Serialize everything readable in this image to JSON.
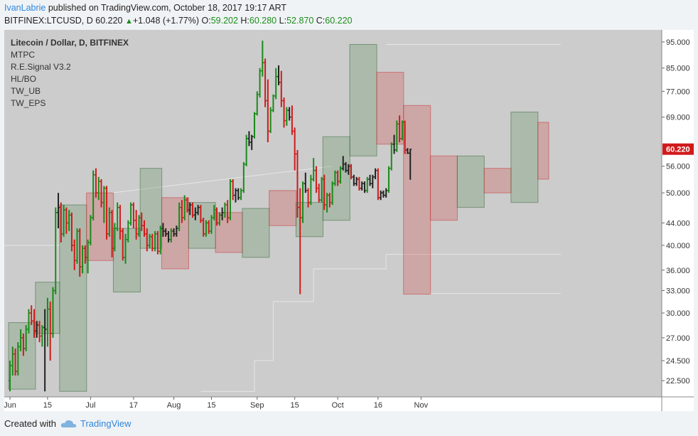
{
  "header": {
    "author": "IvanLabrie",
    "published_text": "published on TradingView.com, October 18, 2017 19:17 ART",
    "symbol": "BITFINEX:LTCUSD, D",
    "price": "60.220",
    "change": "+1.048 (+1.77%)",
    "o_label": "O:",
    "o_value": "59.202",
    "h_label": "H:",
    "h_value": "60.280",
    "l_label": "L:",
    "l_value": "52.870",
    "c_label": "C:",
    "c_value": "60.220"
  },
  "chart_data": {
    "type": "candlestick",
    "title": "Litecoin / Dollar, D, BITFINEX",
    "indicators": [
      "MTPC",
      "R.E.Signal V3.2",
      "HL/BO",
      "TW_UB",
      "TW_EPS"
    ],
    "y_ticks": [
      "95.000",
      "85.000",
      "77.000",
      "69.000",
      "56.000",
      "50.000",
      "44.000",
      "40.000",
      "36.000",
      "33.000",
      "30.000",
      "27.000",
      "24.500",
      "22.500"
    ],
    "x_ticks": [
      {
        "label": "Jun",
        "day": 0
      },
      {
        "label": "15",
        "day": 14
      },
      {
        "label": "Jul",
        "day": 30
      },
      {
        "label": "17",
        "day": 46
      },
      {
        "label": "Aug",
        "day": 61
      },
      {
        "label": "15",
        "day": 75
      },
      {
        "label": "Sep",
        "day": 92
      },
      {
        "label": "15",
        "day": 106
      },
      {
        "label": "Oct",
        "day": 122
      },
      {
        "label": "16",
        "day": 137
      },
      {
        "label": "Nov",
        "day": 153
      }
    ],
    "ylim": [
      21,
      100
    ],
    "scale": "log",
    "last_price": "60.220",
    "candles": [
      [
        22.5,
        24.5,
        21.5,
        24.0
      ],
      [
        24.0,
        26.0,
        23.0,
        25.2
      ],
      [
        25.2,
        25.8,
        23.0,
        23.4
      ],
      [
        23.4,
        26.5,
        23.0,
        26.0
      ],
      [
        26.0,
        28.0,
        25.5,
        27.0
      ],
      [
        27.0,
        27.5,
        25.0,
        25.8
      ],
      [
        25.8,
        28.5,
        25.5,
        28.0
      ],
      [
        28.0,
        30.5,
        27.5,
        30.0
      ],
      [
        30.0,
        31.0,
        28.5,
        29.0
      ],
      [
        29.0,
        30.5,
        27.0,
        27.8
      ],
      [
        27.8,
        29.0,
        27.0,
        28.5
      ],
      [
        28.5,
        29.0,
        26.5,
        27.2
      ],
      [
        27.2,
        28.5,
        26.0,
        28.2
      ],
      [
        28.2,
        30.5,
        21.5,
        28.0
      ],
      [
        28.0,
        32.0,
        26.0,
        30.5
      ],
      [
        30.5,
        31.5,
        24.5,
        27.5
      ],
      [
        27.5,
        33.5,
        27.0,
        33.0
      ],
      [
        33.0,
        47.0,
        32.5,
        46.0
      ],
      [
        46.0,
        50.0,
        43.0,
        47.0
      ],
      [
        47.0,
        48.0,
        40.5,
        42.0
      ],
      [
        42.0,
        47.5,
        41.5,
        46.5
      ],
      [
        46.5,
        47.0,
        42.0,
        44.0
      ],
      [
        44.0,
        46.5,
        42.5,
        45.5
      ],
      [
        45.5,
        46.0,
        39.0,
        40.0
      ],
      [
        40.0,
        41.0,
        36.0,
        37.5
      ],
      [
        37.5,
        43.0,
        37.0,
        42.5
      ],
      [
        42.5,
        43.0,
        35.0,
        36.5
      ],
      [
        36.5,
        40.0,
        35.5,
        39.5
      ],
      [
        39.5,
        40.0,
        37.0,
        38.0
      ],
      [
        38.0,
        41.0,
        35.5,
        40.5
      ],
      [
        40.5,
        45.5,
        40.0,
        45.0
      ],
      [
        45.0,
        55.0,
        44.5,
        54.0
      ],
      [
        54.0,
        55.5,
        49.0,
        50.0
      ],
      [
        50.0,
        53.5,
        48.5,
        52.5
      ],
      [
        52.5,
        53.0,
        47.0,
        48.0
      ],
      [
        48.0,
        51.5,
        44.0,
        51.0
      ],
      [
        51.0,
        51.5,
        41.0,
        42.0
      ],
      [
        42.0,
        47.0,
        41.5,
        46.0
      ],
      [
        46.0,
        46.5,
        38.0,
        39.5
      ],
      [
        39.5,
        44.0,
        39.0,
        43.0
      ],
      [
        43.0,
        48.0,
        42.5,
        47.0
      ],
      [
        47.0,
        47.5,
        41.0,
        42.5
      ],
      [
        42.5,
        43.0,
        37.5,
        38.0
      ],
      [
        38.0,
        42.0,
        37.0,
        41.0
      ],
      [
        41.0,
        44.5,
        40.5,
        44.0
      ],
      [
        44.0,
        48.0,
        43.5,
        47.5
      ],
      [
        47.5,
        48.0,
        43.0,
        44.5
      ],
      [
        44.5,
        46.5,
        41.0,
        42.0
      ],
      [
        42.0,
        45.5,
        41.5,
        45.0
      ],
      [
        45.0,
        46.0,
        42.5,
        43.5
      ],
      [
        43.5,
        44.5,
        41.5,
        42.0
      ],
      [
        42.0,
        43.0,
        39.0,
        40.0
      ],
      [
        40.0,
        42.0,
        39.5,
        41.5
      ],
      [
        41.5,
        42.0,
        39.0,
        39.5
      ],
      [
        39.5,
        42.5,
        39.0,
        42.0
      ],
      [
        42.0,
        42.5,
        38.5,
        39.0
      ],
      [
        39.0,
        43.5,
        38.5,
        43.0
      ],
      [
        43.0,
        44.0,
        41.5,
        42.5
      ],
      [
        42.5,
        43.0,
        41.5,
        42.0
      ],
      [
        42.0,
        42.5,
        40.5,
        41.0
      ],
      [
        41.0,
        43.0,
        40.5,
        42.5
      ],
      [
        42.5,
        43.0,
        41.5,
        42.0
      ],
      [
        42.0,
        43.5,
        41.5,
        43.0
      ],
      [
        43.0,
        48.0,
        42.5,
        47.0
      ],
      [
        47.0,
        48.5,
        44.0,
        45.0
      ],
      [
        45.0,
        49.5,
        44.5,
        48.5
      ],
      [
        48.5,
        49.0,
        46.0,
        46.5
      ],
      [
        46.5,
        48.0,
        45.5,
        47.5
      ],
      [
        47.5,
        48.0,
        45.0,
        45.5
      ],
      [
        45.5,
        47.0,
        44.5,
        46.0
      ],
      [
        46.0,
        47.5,
        45.5,
        47.0
      ],
      [
        47.0,
        47.5,
        44.0,
        44.5
      ],
      [
        44.5,
        45.0,
        41.5,
        42.0
      ],
      [
        42.0,
        44.5,
        41.5,
        44.0
      ],
      [
        44.0,
        44.5,
        42.0,
        42.5
      ],
      [
        42.5,
        45.5,
        42.0,
        45.0
      ],
      [
        45.0,
        47.5,
        44.5,
        46.5
      ],
      [
        46.5,
        47.0,
        43.5,
        44.0
      ],
      [
        44.0,
        46.0,
        43.5,
        45.5
      ],
      [
        45.5,
        47.0,
        44.5,
        46.0
      ],
      [
        46.0,
        48.0,
        45.0,
        47.5
      ],
      [
        47.5,
        48.5,
        44.0,
        45.0
      ],
      [
        45.0,
        53.0,
        44.5,
        52.5
      ],
      [
        52.5,
        53.0,
        48.5,
        49.5
      ],
      [
        49.5,
        51.0,
        48.0,
        50.5
      ],
      [
        50.5,
        51.0,
        48.5,
        49.0
      ],
      [
        49.0,
        51.0,
        48.5,
        50.5
      ],
      [
        50.5,
        57.0,
        50.0,
        56.5
      ],
      [
        56.5,
        64.0,
        56.0,
        63.0
      ],
      [
        63.0,
        65.0,
        61.0,
        62.0
      ],
      [
        62.0,
        64.0,
        60.0,
        63.5
      ],
      [
        63.5,
        70.5,
        63.0,
        70.0
      ],
      [
        70.0,
        77.0,
        69.5,
        76.0
      ],
      [
        76.0,
        85.0,
        75.0,
        84.0
      ],
      [
        84.0,
        95.5,
        82.0,
        87.0
      ],
      [
        87.0,
        88.5,
        72.0,
        74.0
      ],
      [
        74.0,
        81.0,
        62.0,
        65.0
      ],
      [
        65.0,
        72.0,
        64.5,
        71.0
      ],
      [
        71.0,
        76.0,
        70.5,
        75.5
      ],
      [
        75.5,
        85.0,
        74.5,
        82.0
      ],
      [
        82.0,
        86.0,
        79.0,
        80.0
      ],
      [
        80.0,
        84.0,
        72.0,
        74.0
      ],
      [
        74.0,
        75.0,
        66.0,
        68.0
      ],
      [
        68.0,
        72.0,
        66.5,
        71.0
      ],
      [
        71.0,
        72.0,
        68.0,
        69.0
      ],
      [
        69.0,
        72.5,
        64.0,
        65.0
      ],
      [
        65.0,
        66.0,
        55.0,
        59.0
      ],
      [
        59.0,
        60.0,
        45.0,
        47.0
      ],
      [
        47.0,
        51.0,
        32.5,
        45.0
      ],
      [
        45.0,
        52.5,
        44.0,
        52.0
      ],
      [
        52.0,
        54.5,
        50.0,
        50.5
      ],
      [
        50.5,
        51.0,
        47.0,
        48.0
      ],
      [
        48.0,
        54.0,
        47.5,
        53.0
      ],
      [
        53.0,
        58.0,
        52.5,
        55.0
      ],
      [
        55.0,
        56.0,
        50.0,
        51.0
      ],
      [
        51.0,
        52.0,
        48.0,
        48.5
      ],
      [
        48.5,
        53.5,
        48.0,
        53.0
      ],
      [
        53.0,
        54.0,
        46.5,
        47.5
      ],
      [
        47.5,
        50.0,
        46.0,
        49.5
      ],
      [
        49.5,
        50.0,
        47.0,
        48.0
      ],
      [
        48.0,
        52.5,
        47.5,
        52.0
      ],
      [
        52.0,
        55.0,
        51.5,
        54.5
      ],
      [
        54.5,
        55.0,
        51.5,
        52.5
      ],
      [
        52.5,
        56.0,
        52.0,
        55.5
      ],
      [
        55.5,
        58.5,
        55.0,
        56.5
      ],
      [
        56.5,
        57.0,
        54.5,
        55.0
      ],
      [
        55.0,
        56.5,
        54.0,
        56.0
      ],
      [
        56.0,
        56.5,
        53.0,
        53.5
      ],
      [
        53.5,
        54.0,
        51.5,
        52.0
      ],
      [
        52.0,
        53.5,
        51.5,
        53.0
      ],
      [
        53.0,
        53.5,
        50.5,
        51.0
      ],
      [
        51.0,
        52.5,
        50.5,
        52.0
      ],
      [
        52.0,
        52.5,
        50.0,
        50.5
      ],
      [
        50.5,
        53.5,
        50.0,
        53.0
      ],
      [
        53.0,
        54.0,
        51.5,
        52.0
      ],
      [
        52.0,
        54.0,
        51.0,
        53.5
      ],
      [
        53.5,
        55.5,
        53.0,
        55.0
      ],
      [
        55.0,
        55.5,
        48.5,
        49.0
      ],
      [
        49.0,
        50.5,
        48.5,
        50.0
      ],
      [
        50.0,
        50.5,
        49.0,
        49.5
      ],
      [
        49.5,
        51.0,
        49.0,
        50.5
      ],
      [
        50.5,
        56.0,
        50.0,
        55.5
      ],
      [
        55.5,
        62.0,
        55.0,
        61.5
      ],
      [
        61.5,
        64.0,
        59.0,
        60.0
      ],
      [
        60.0,
        68.0,
        59.5,
        67.0
      ],
      [
        67.0,
        69.5,
        62.0,
        63.0
      ],
      [
        63.0,
        68.0,
        62.5,
        67.5
      ],
      [
        67.5,
        68.0,
        59.0,
        60.0
      ],
      [
        60.0,
        60.5,
        59.0,
        59.2
      ],
      [
        59.202,
        60.28,
        52.87,
        60.22
      ]
    ],
    "boxes": [
      {
        "d0": 0,
        "d1": 9,
        "lo": 21.7,
        "hi": 28.8,
        "color": "green"
      },
      {
        "d0": 10,
        "d1": 18,
        "lo": 27.5,
        "hi": 34.2,
        "color": "green"
      },
      {
        "d0": 19,
        "d1": 28,
        "lo": 21.5,
        "hi": 47.5,
        "color": "green"
      },
      {
        "d0": 29,
        "d1": 38,
        "lo": 37.5,
        "hi": 50.0,
        "color": "red"
      },
      {
        "d0": 39,
        "d1": 48,
        "lo": 32.8,
        "hi": 43.0,
        "color": "green"
      },
      {
        "d0": 49,
        "d1": 56,
        "lo": 39.5,
        "hi": 55.5,
        "color": "green"
      },
      {
        "d0": 57,
        "d1": 66,
        "lo": 36.2,
        "hi": 49.0,
        "color": "red"
      },
      {
        "d0": 67,
        "d1": 76,
        "lo": 39.5,
        "hi": 48.0,
        "color": "green"
      },
      {
        "d0": 77,
        "d1": 86,
        "lo": 38.8,
        "hi": 46.0,
        "color": "red"
      },
      {
        "d0": 87,
        "d1": 96,
        "lo": 38.0,
        "hi": 46.8,
        "color": "green"
      },
      {
        "d0": 97,
        "d1": 106,
        "lo": 43.5,
        "hi": 50.5,
        "color": "red"
      },
      {
        "d0": 107,
        "d1": 116,
        "lo": 41.5,
        "hi": 48.0,
        "color": "green"
      },
      {
        "d0": 117,
        "d1": 126,
        "lo": 44.5,
        "hi": 63.5,
        "color": "green"
      },
      {
        "d0": 127,
        "d1": 136,
        "lo": 58.5,
        "hi": 94.0,
        "color": "green"
      },
      {
        "d0": 137,
        "d1": 146,
        "lo": 61.5,
        "hi": 83.5,
        "color": "red"
      },
      {
        "d0": 147,
        "d1": 156,
        "lo": 32.5,
        "hi": 72.5,
        "color": "red"
      },
      {
        "d0": 157,
        "d1": 166,
        "lo": 44.5,
        "hi": 58.5,
        "color": "red"
      },
      {
        "d0": 167,
        "d1": 176,
        "lo": 47.0,
        "hi": 58.5,
        "color": "green"
      },
      {
        "d0": 177,
        "d1": 186,
        "lo": 50.0,
        "hi": 55.5,
        "color": "red"
      },
      {
        "d0": 187,
        "d1": 196,
        "lo": 48.0,
        "hi": 70.5,
        "color": "green"
      },
      {
        "d0": 197,
        "d1": 200,
        "lo": 53.0,
        "hi": 67.5,
        "color": "red"
      }
    ]
  },
  "footer": {
    "created_with": "Created with",
    "brand": "TradingView"
  }
}
